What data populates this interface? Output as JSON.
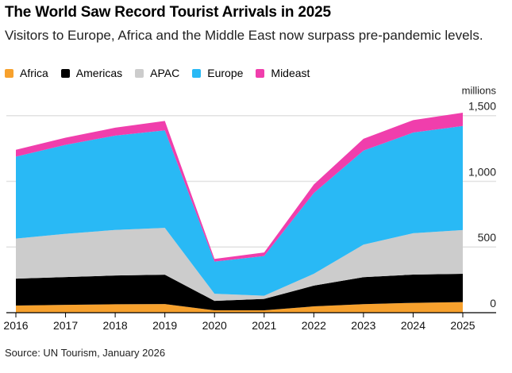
{
  "title": "The World Saw Record Tourist Arrivals in 2025",
  "subtitle": "Visitors to Europe, Africa and the Middle East now surpass pre-pandemic levels.",
  "source": "Source: UN Tourism, January 2026",
  "chart_data": {
    "type": "area",
    "stacked": true,
    "title": "The World Saw Record Tourist Arrivals in 2025",
    "ylabel": "millions",
    "xlabel": "",
    "x": [
      2016,
      2017,
      2018,
      2019,
      2020,
      2021,
      2022,
      2023,
      2024,
      2025
    ],
    "x_tick_labels": [
      "2016",
      "2017",
      "2018",
      "2019",
      "2020",
      "2021",
      "2022",
      "2023",
      "2024",
      "2025"
    ],
    "ylim": [
      0,
      1500
    ],
    "y_ticks": [
      0,
      500,
      1000,
      1500
    ],
    "y_tick_labels": [
      "0",
      "500",
      "1,000",
      "1,500"
    ],
    "grid": true,
    "legend_position": "top-left",
    "series": [
      {
        "name": "Africa",
        "color": "#f7a12d",
        "values": [
          54,
          60,
          64,
          66,
          18,
          18,
          48,
          65,
          75,
          81
        ]
      },
      {
        "name": "Americas",
        "color": "#000000",
        "values": [
          205,
          211,
          219,
          223,
          72,
          87,
          158,
          205,
          215,
          215
        ]
      },
      {
        "name": "APAC",
        "color": "#cccccc",
        "values": [
          305,
          329,
          347,
          357,
          54,
          24,
          90,
          248,
          315,
          333
        ]
      },
      {
        "name": "Europe",
        "color": "#29b9f5",
        "values": [
          624,
          678,
          718,
          742,
          245,
          302,
          615,
          716,
          766,
          792
        ]
      },
      {
        "name": "Mideast",
        "color": "#f03eac",
        "values": [
          52,
          54,
          60,
          72,
          20,
          27,
          65,
          90,
          95,
          101
        ]
      }
    ]
  }
}
